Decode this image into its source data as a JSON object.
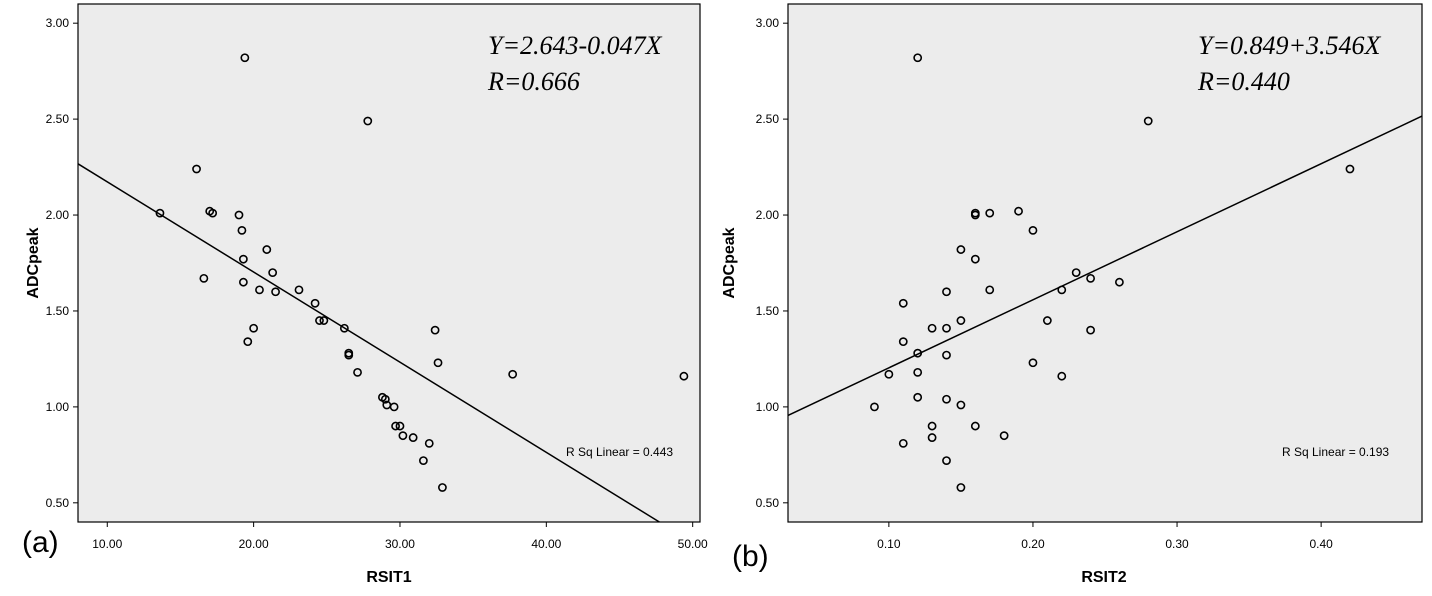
{
  "chart_data": [
    {
      "type": "scatter",
      "panel_label": "(a)",
      "xlabel": "RSIT1",
      "ylabel": "ADCpeak",
      "xlim": [
        8,
        50.5
      ],
      "ylim": [
        0.4,
        3.1
      ],
      "xticks": [
        "10.00",
        "20.00",
        "30.00",
        "40.00",
        "50.00"
      ],
      "yticks": [
        "0.50",
        "1.00",
        "1.50",
        "2.00",
        "2.50",
        "3.00"
      ],
      "equation": "Y=2.643-0.047X",
      "r_text": "R=0.666",
      "r_sq_text": "R Sq Linear = 0.443",
      "fit": {
        "intercept": 2.643,
        "slope": -0.047
      },
      "points": [
        [
          13.6,
          2.01
        ],
        [
          16.1,
          2.24
        ],
        [
          16.6,
          1.67
        ],
        [
          17.0,
          2.02
        ],
        [
          17.2,
          2.01
        ],
        [
          19.0,
          2.0
        ],
        [
          19.2,
          1.92
        ],
        [
          19.3,
          1.77
        ],
        [
          19.3,
          1.65
        ],
        [
          19.4,
          2.82
        ],
        [
          19.6,
          1.34
        ],
        [
          20.0,
          1.41
        ],
        [
          20.4,
          1.61
        ],
        [
          20.9,
          1.82
        ],
        [
          21.3,
          1.7
        ],
        [
          21.5,
          1.6
        ],
        [
          23.1,
          1.61
        ],
        [
          24.2,
          1.54
        ],
        [
          24.5,
          1.45
        ],
        [
          24.8,
          1.45
        ],
        [
          26.2,
          1.41
        ],
        [
          26.5,
          1.28
        ],
        [
          26.5,
          1.27
        ],
        [
          27.1,
          1.18
        ],
        [
          27.8,
          2.49
        ],
        [
          28.8,
          1.05
        ],
        [
          29.0,
          1.04
        ],
        [
          29.1,
          1.01
        ],
        [
          29.6,
          1.0
        ],
        [
          29.7,
          0.9
        ],
        [
          30.0,
          0.9
        ],
        [
          30.2,
          0.85
        ],
        [
          30.9,
          0.84
        ],
        [
          31.6,
          0.72
        ],
        [
          32.0,
          0.81
        ],
        [
          32.4,
          1.4
        ],
        [
          32.6,
          1.23
        ],
        [
          32.9,
          0.58
        ],
        [
          37.7,
          1.17
        ],
        [
          49.4,
          1.16
        ]
      ]
    },
    {
      "type": "scatter",
      "panel_label": "(b)",
      "xlabel": "RSIT2",
      "ylabel": "ADCpeak",
      "xlim": [
        0.03,
        0.47
      ],
      "ylim": [
        0.4,
        3.1
      ],
      "xticks": [
        "0.10",
        "0.20",
        "0.30",
        "0.40"
      ],
      "yticks": [
        "0.50",
        "1.00",
        "1.50",
        "2.00",
        "2.50",
        "3.00"
      ],
      "equation": "Y=0.849+3.546X",
      "r_text": "R=0.440",
      "r_sq_text": "R Sq Linear = 0.193",
      "fit": {
        "intercept": 0.849,
        "slope": 3.546
      },
      "points": [
        [
          0.09,
          1.0
        ],
        [
          0.1,
          1.17
        ],
        [
          0.11,
          1.54
        ],
        [
          0.11,
          1.34
        ],
        [
          0.11,
          0.81
        ],
        [
          0.12,
          2.82
        ],
        [
          0.12,
          1.28
        ],
        [
          0.12,
          1.18
        ],
        [
          0.12,
          1.05
        ],
        [
          0.13,
          1.41
        ],
        [
          0.13,
          0.9
        ],
        [
          0.13,
          0.84
        ],
        [
          0.14,
          1.6
        ],
        [
          0.14,
          1.41
        ],
        [
          0.14,
          1.27
        ],
        [
          0.14,
          1.04
        ],
        [
          0.14,
          0.72
        ],
        [
          0.15,
          1.82
        ],
        [
          0.15,
          1.45
        ],
        [
          0.15,
          1.01
        ],
        [
          0.15,
          0.58
        ],
        [
          0.16,
          2.01
        ],
        [
          0.16,
          2.0
        ],
        [
          0.16,
          1.77
        ],
        [
          0.16,
          0.9
        ],
        [
          0.17,
          2.01
        ],
        [
          0.17,
          1.61
        ],
        [
          0.18,
          0.85
        ],
        [
          0.19,
          2.02
        ],
        [
          0.2,
          1.92
        ],
        [
          0.2,
          1.23
        ],
        [
          0.21,
          1.45
        ],
        [
          0.22,
          1.61
        ],
        [
          0.22,
          1.16
        ],
        [
          0.23,
          1.7
        ],
        [
          0.24,
          1.67
        ],
        [
          0.24,
          1.4
        ],
        [
          0.26,
          1.65
        ],
        [
          0.28,
          2.49
        ],
        [
          0.42,
          2.24
        ]
      ]
    }
  ]
}
